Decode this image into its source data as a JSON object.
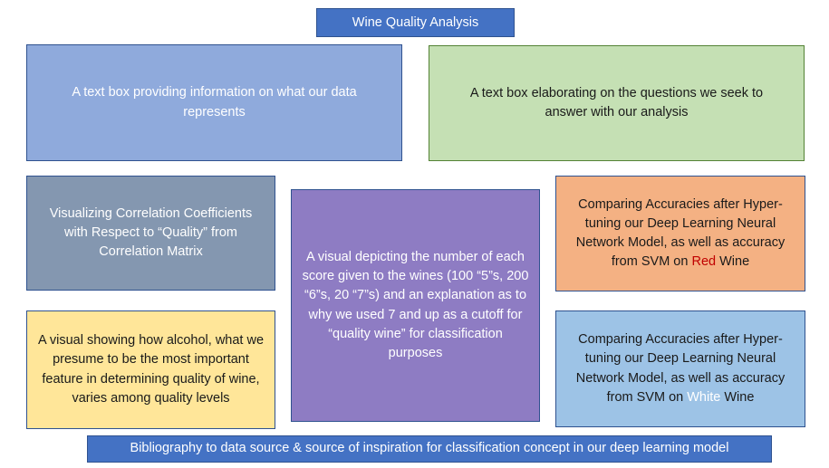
{
  "title": "Wine Quality Analysis",
  "boxes": {
    "data_info": "A text box providing information on what our data represents",
    "questions": "A text box elaborating on the questions we seek to answer with our analysis",
    "correlation": "Visualizing Correlation Coefficients with Respect to “Quality” from Correlation Matrix",
    "score_count": "A visual depicting the number of each score given to the wines (100 “5”s, 200 “6”s, 20 “7”s) and an explanation as to why we used 7 and up as a cutoff for “quality wine” for classification purposes",
    "alcohol": "A visual showing how alcohol, what we presume to be the most important feature in determining quality of wine, varies among quality levels",
    "red_wine": {
      "prefix": "Comparing Accuracies after Hyper-tuning our Deep Learning Neural Network Model, as well as accuracy from SVM on ",
      "highlight": "Red",
      "suffix": " Wine"
    },
    "white_wine": {
      "prefix": "Comparing Accuracies after Hyper-tuning our Deep Learning Neural Network Model, as well as accuracy from SVM on ",
      "highlight": "White",
      "suffix": " Wine"
    },
    "bibliography": "Bibliography to data source & source of inspiration for classification concept in our deep learning model"
  },
  "colors": {
    "title_bg": "#4472c4",
    "data_info_bg": "#8faadc",
    "questions_bg": "#c5e0b4",
    "correlation_bg": "#8497b0",
    "score_count_bg": "#8e7cc3",
    "red_wine_bg": "#f4b183",
    "alcohol_bg": "#ffe699",
    "white_wine_bg": "#9dc3e6",
    "bibliography_bg": "#4472c4",
    "red_highlight": "#c00000",
    "white_highlight": "#ffffff"
  }
}
